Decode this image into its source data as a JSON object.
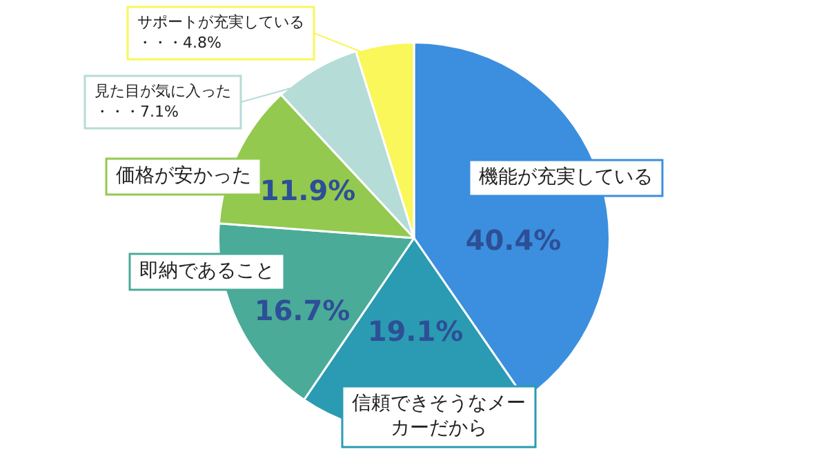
{
  "chart_data": {
    "type": "pie",
    "categories": [
      "機能が充実している",
      "信頼できそうなメーカーだから",
      "即納であること",
      "価格が安かった",
      "見た目が気に入った",
      "サポートが充実している"
    ],
    "values": [
      40.4,
      19.1,
      16.7,
      11.9,
      7.1,
      4.8
    ],
    "colors": [
      "#3b8fde",
      "#2a9bb2",
      "#4aab99",
      "#93c94f",
      "#b5dcd6",
      "#f9f75a"
    ],
    "value_labels": [
      "40.4%",
      "19.1%",
      "16.7%",
      "11.9%",
      "・・・7.1%",
      "・・・4.8%"
    ]
  }
}
